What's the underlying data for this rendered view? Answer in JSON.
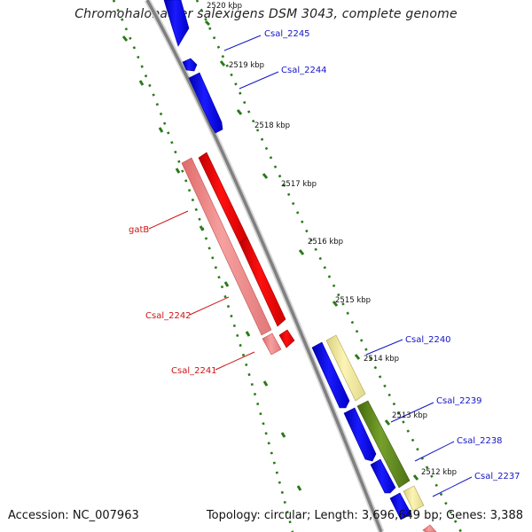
{
  "title": "Chromohalobacter salexigens DSM 3043, complete genome",
  "accession": "Accession: NC_007963",
  "topology": "Topology: circular; Length: 3,696,649 bp; Genes: 3,388",
  "kbp_labels": [
    "2520 kbp",
    "2519 kbp",
    "2518 kbp",
    "2517 kbp",
    "2516 kbp",
    "2515 kbp",
    "2514 kbp",
    "2513 kbp",
    "2512 kbp"
  ],
  "gene_labels": {
    "csal_2245": "Csal_2245",
    "csal_2244": "Csal_2244",
    "csal_2240": "Csal_2240",
    "csal_2239": "Csal_2239",
    "csal_2238": "Csal_2238",
    "csal_2237": "Csal_2237",
    "gatb": "gatB",
    "csal_2242": "Csal_2242",
    "csal_2241": "Csal_2241"
  },
  "colors": {
    "forward_gene": "#0a0ae8",
    "rna_gene": "#ee0a0a",
    "rna_gene_light": "#f08a8a",
    "pale_gene": "#efe79a",
    "olive_gene": "#5f8a1e",
    "backbone": "#8a8a8a",
    "ruler": "#2a7a18",
    "label_blue": "#1414c8",
    "label_red": "#cc1414"
  }
}
